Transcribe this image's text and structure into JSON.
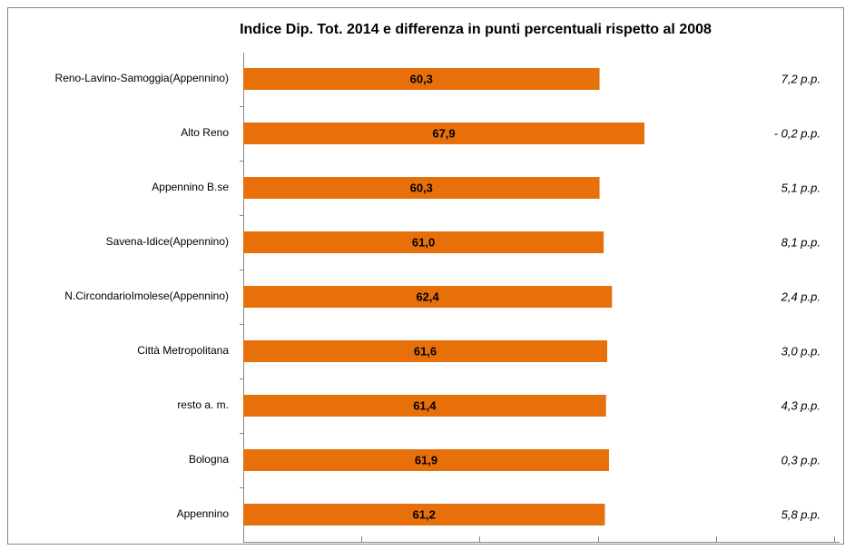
{
  "chart_data": {
    "type": "bar",
    "orientation": "horizontal",
    "title": "Indice Dip. Tot. 2014 e differenza  in punti percentuali  rispetto al 2008",
    "categories": [
      "Reno-Lavino-Samoggia(Appennino)",
      "Alto Reno",
      "Appennino B.se",
      "Savena-Idice(Appennino)",
      "N.CircondarioImolese(Appennino)",
      "Città Metropolitana",
      "resto a. m.",
      "Bologna",
      "Appennino"
    ],
    "values": [
      60.3,
      67.9,
      60.3,
      61.0,
      62.4,
      61.6,
      61.4,
      61.9,
      61.2
    ],
    "value_labels": [
      "60,3",
      "67,9",
      "60,3",
      "61,0",
      "62,4",
      "61,6",
      "61,4",
      "61,9",
      "61,2"
    ],
    "annotations": [
      "7,2 p.p.",
      "- 0,2 p.p.",
      "5,1 p.p.",
      "8,1 p.p.",
      "2,4 p.p.",
      "3,0 p.p.",
      "4,3 p.p.",
      "0,3 p.p.",
      "5,8 p.p."
    ],
    "color": "#e8700a",
    "xlim": [
      0,
      100
    ],
    "xticks": [
      0,
      20,
      40,
      60,
      80,
      100
    ]
  }
}
